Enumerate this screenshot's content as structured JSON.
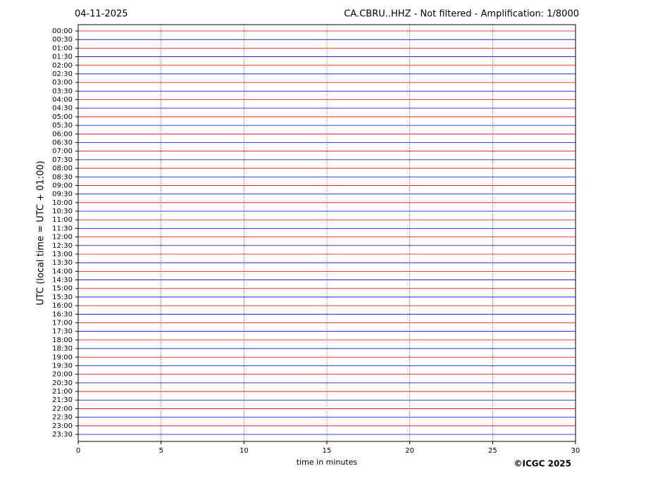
{
  "chart_data": {
    "type": "helicorder",
    "title_left": "04-11-2025",
    "title": "CA.CBRU..HHZ - Not filtered - Amplification: 1/8000",
    "xlabel": "time in minutes",
    "ylabel": "UTC (local time = UTC + 01:00)",
    "credit": "©ICGC 2025",
    "categories": [
      "00:00",
      "00:30",
      "01:00",
      "01:30",
      "02:00",
      "02:30",
      "03:00",
      "03:30",
      "04:00",
      "04:30",
      "05:00",
      "05:30",
      "06:00",
      "06:30",
      "07:00",
      "07:30",
      "08:00",
      "08:30",
      "09:00",
      "09:30",
      "10:00",
      "10:30",
      "11:00",
      "11:30",
      "12:00",
      "12:30",
      "13:00",
      "13:30",
      "14:00",
      "14:30",
      "15:00",
      "15:30",
      "16:00",
      "16:30",
      "17:00",
      "17:30",
      "18:00",
      "18:30",
      "19:00",
      "19:30",
      "20:00",
      "20:30",
      "21:00",
      "21:30",
      "22:00",
      "22:30",
      "23:00",
      "23:30"
    ],
    "trace_colors": [
      "#e00000",
      "#0000d0"
    ],
    "xlim": [
      0,
      30
    ],
    "xticks": [
      0,
      5,
      10,
      15,
      20,
      25,
      30
    ],
    "grid": true
  }
}
